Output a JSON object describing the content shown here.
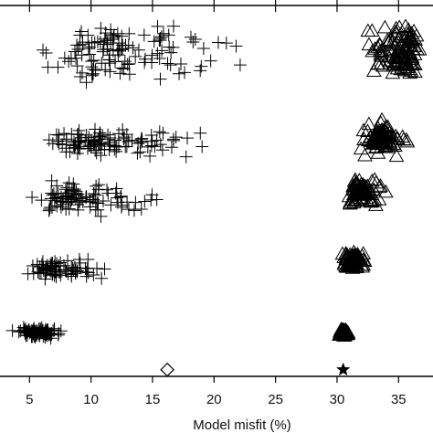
{
  "chart_data": {
    "type": "scatter",
    "xlabel": "Model misfit (%)",
    "xlim": [
      2.6,
      37.8
    ],
    "ylim": [
      0,
      1
    ],
    "xticks": [
      5,
      10,
      15,
      20,
      25,
      30,
      35
    ],
    "xtick_labels": [
      "5",
      "10",
      "15",
      "20",
      "25",
      "30",
      "35"
    ],
    "grid": false,
    "color": "#000000",
    "clusters": [
      {
        "marker": "plus",
        "level": 0.118,
        "x_range": [
          2.6,
          9.0
        ],
        "x_center": 5.6,
        "spread_y": 0.012,
        "count": 90
      },
      {
        "marker": "plus",
        "level": 0.288,
        "x_range": [
          3.6,
          16.3
        ],
        "x_center": 7.3,
        "spread_y": 0.022,
        "count": 75
      },
      {
        "marker": "plus",
        "level": 0.478,
        "x_range": [
          3.0,
          21.0
        ],
        "x_center": 9.0,
        "spread_y": 0.038,
        "count": 95
      },
      {
        "marker": "plus",
        "level": 0.628,
        "x_range": [
          2.6,
          24.0
        ],
        "x_center": 10.5,
        "spread_y": 0.035,
        "count": 110
      },
      {
        "marker": "plus",
        "level": 0.875,
        "x_range": [
          2.6,
          29.5
        ],
        "x_center": 12.0,
        "spread_y": 0.07,
        "count": 120
      },
      {
        "marker": "triangle",
        "level": 0.118,
        "x_range": [
          30.0,
          31.2
        ],
        "x_center": 30.5,
        "spread_y": 0.01,
        "count": 60
      },
      {
        "marker": "triangle",
        "level": 0.31,
        "x_range": [
          29.6,
          33.3
        ],
        "x_center": 31.3,
        "spread_y": 0.025,
        "count": 80
      },
      {
        "marker": "triangle",
        "level": 0.5,
        "x_range": [
          29.9,
          35.0
        ],
        "x_center": 32.0,
        "spread_y": 0.035,
        "count": 80
      },
      {
        "marker": "triangle",
        "level": 0.64,
        "x_range": [
          30.7,
          37.8
        ],
        "x_center": 33.5,
        "spread_y": 0.035,
        "count": 90
      },
      {
        "marker": "triangle",
        "level": 0.88,
        "x_range": [
          30.7,
          37.8
        ],
        "x_center": 35.5,
        "spread_y": 0.06,
        "count": 110
      }
    ],
    "reference_markers": [
      {
        "marker": "diamond",
        "x": 16.2,
        "level": 0.018
      },
      {
        "marker": "star",
        "x": 30.5,
        "level": 0.018
      }
    ]
  }
}
